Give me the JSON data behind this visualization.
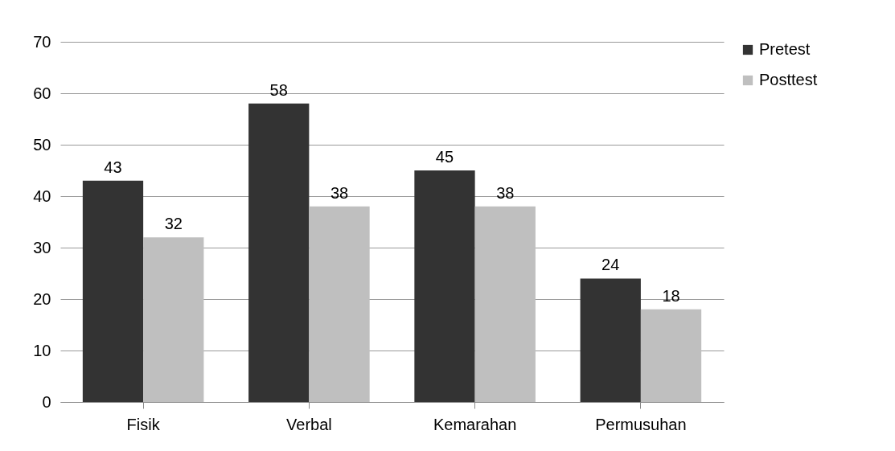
{
  "chart_data": {
    "type": "bar",
    "categories": [
      "Fisik",
      "Verbal",
      "Kemarahan",
      "Permusuhan"
    ],
    "series": [
      {
        "name": "Pretest",
        "color": "#333333",
        "values": [
          43,
          58,
          45,
          24
        ]
      },
      {
        "name": "Posttest",
        "color": "#bfbfbf",
        "values": [
          32,
          38,
          38,
          18
        ]
      }
    ],
    "ylim": [
      0,
      70
    ],
    "yticks": [
      0,
      10,
      20,
      30,
      40,
      50,
      60,
      70
    ],
    "grid": "y",
    "legend": "right",
    "data_labels": true
  }
}
